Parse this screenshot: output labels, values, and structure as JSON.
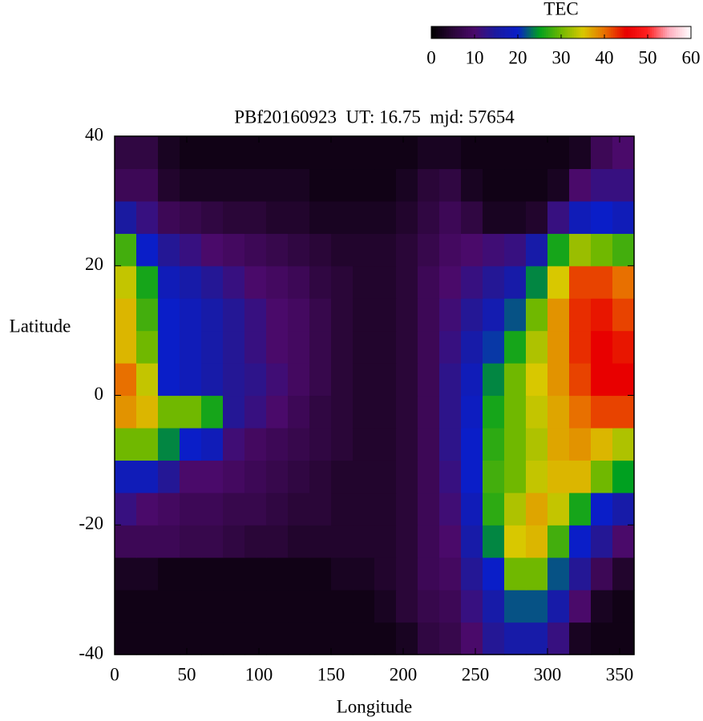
{
  "chart_data": {
    "type": "heatmap",
    "title": "PBf20160923  UT: 16.75  mjd: 57654",
    "x_label": "Longitude",
    "y_label": "Latitude",
    "colorbar_label": "TEC",
    "x": [
      7.5,
      22.5,
      37.5,
      52.5,
      67.5,
      82.5,
      97.5,
      112.5,
      127.5,
      142.5,
      157.5,
      172.5,
      187.5,
      202.5,
      217.5,
      232.5,
      247.5,
      262.5,
      277.5,
      292.5,
      307.5,
      322.5,
      337.5,
      352.5
    ],
    "y": [
      -37.5,
      -32.5,
      -27.5,
      -22.5,
      -17.5,
      -12.5,
      -7.5,
      -2.5,
      2.5,
      7.5,
      12.5,
      17.5,
      22.5,
      27.5,
      32.5,
      37.5
    ],
    "z": [
      [
        2,
        2,
        2,
        2,
        2,
        2,
        2,
        2,
        2,
        2,
        2,
        2,
        2,
        3,
        6,
        7,
        10,
        14,
        16,
        16,
        12,
        3,
        2,
        2
      ],
      [
        2,
        2,
        2,
        2,
        2,
        2,
        2,
        2,
        2,
        2,
        2,
        2,
        3,
        5,
        7,
        8,
        12,
        16,
        22,
        22,
        16,
        10,
        3,
        2
      ],
      [
        3,
        3,
        2,
        2,
        2,
        2,
        2,
        2,
        2,
        2,
        3,
        3,
        4,
        5,
        8,
        9,
        14,
        20,
        30,
        30,
        22,
        14,
        8,
        4
      ],
      [
        8,
        8,
        8,
        7,
        7,
        6,
        5,
        5,
        4,
        4,
        4,
        4,
        4,
        5,
        8,
        10,
        16,
        24,
        35,
        36,
        28,
        20,
        14,
        10
      ],
      [
        12,
        10,
        9,
        8,
        8,
        7,
        7,
        6,
        5,
        5,
        4,
        4,
        4,
        5,
        8,
        11,
        18,
        27,
        33,
        37,
        34,
        26,
        20,
        16
      ],
      [
        18,
        18,
        14,
        10,
        10,
        9,
        8,
        7,
        6,
        5,
        4,
        4,
        4,
        5,
        8,
        12,
        20,
        28,
        30,
        34,
        36,
        36,
        30,
        25
      ],
      [
        30,
        30,
        24,
        20,
        18,
        11,
        9,
        8,
        7,
        6,
        5,
        4,
        4,
        5,
        8,
        13,
        20,
        27,
        30,
        33,
        37,
        38,
        36,
        33
      ],
      [
        38,
        36,
        30,
        30,
        26,
        14,
        12,
        10,
        8,
        6,
        5,
        4,
        4,
        5,
        8,
        13,
        19,
        26,
        30,
        34,
        37,
        40,
        42,
        42
      ],
      [
        40,
        34,
        20,
        18,
        16,
        14,
        13,
        11,
        9,
        7,
        5,
        4,
        4,
        5,
        8,
        13,
        18,
        24,
        30,
        35,
        38,
        42,
        45,
        45
      ],
      [
        36,
        30,
        20,
        18,
        16,
        14,
        12,
        10,
        9,
        7,
        5,
        4,
        4,
        5,
        8,
        12,
        16,
        21,
        26,
        33,
        38,
        43,
        45,
        44
      ],
      [
        36,
        28,
        20,
        18,
        16,
        14,
        12,
        10,
        9,
        7,
        5,
        4,
        4,
        5,
        8,
        11,
        14,
        17,
        22,
        30,
        38,
        43,
        44,
        42
      ],
      [
        34,
        26,
        18,
        16,
        14,
        12,
        10,
        9,
        8,
        6,
        5,
        4,
        4,
        5,
        8,
        10,
        12,
        14,
        16,
        24,
        35,
        42,
        42,
        40
      ],
      [
        28,
        20,
        14,
        12,
        10,
        9,
        8,
        7,
        6,
        5,
        4,
        4,
        4,
        5,
        7,
        9,
        10,
        11,
        12,
        16,
        26,
        32,
        30,
        28
      ],
      [
        15,
        12,
        8,
        7,
        6,
        5,
        5,
        4,
        4,
        3,
        3,
        3,
        3,
        4,
        6,
        8,
        6,
        3,
        3,
        4,
        12,
        18,
        20,
        18
      ],
      [
        8,
        8,
        4,
        3,
        3,
        3,
        3,
        3,
        3,
        2,
        2,
        2,
        2,
        3,
        5,
        6,
        3,
        2,
        2,
        2,
        3,
        10,
        12,
        12
      ],
      [
        6,
        6,
        3,
        2,
        2,
        2,
        2,
        2,
        2,
        2,
        2,
        2,
        2,
        2,
        3,
        3,
        2,
        2,
        2,
        2,
        2,
        3,
        8,
        10
      ]
    ],
    "xlim": [
      0,
      360
    ],
    "xticks": [
      0,
      50,
      100,
      150,
      200,
      250,
      300,
      350
    ],
    "ylim": [
      -40,
      40
    ],
    "yticks": [
      -40,
      -20,
      0,
      20,
      40
    ],
    "zlim": [
      0,
      60
    ],
    "zticks": [
      0,
      10,
      20,
      30,
      40,
      50,
      60
    ],
    "colormap": [
      "#000000",
      "#2a0638",
      "#4a0a6a",
      "#1a1aa0",
      "#0a1ec8",
      "#00a020",
      "#70b800",
      "#d8c800",
      "#e87000",
      "#e80000",
      "#ff2020",
      "#ffb0c0",
      "#ffffff"
    ]
  }
}
